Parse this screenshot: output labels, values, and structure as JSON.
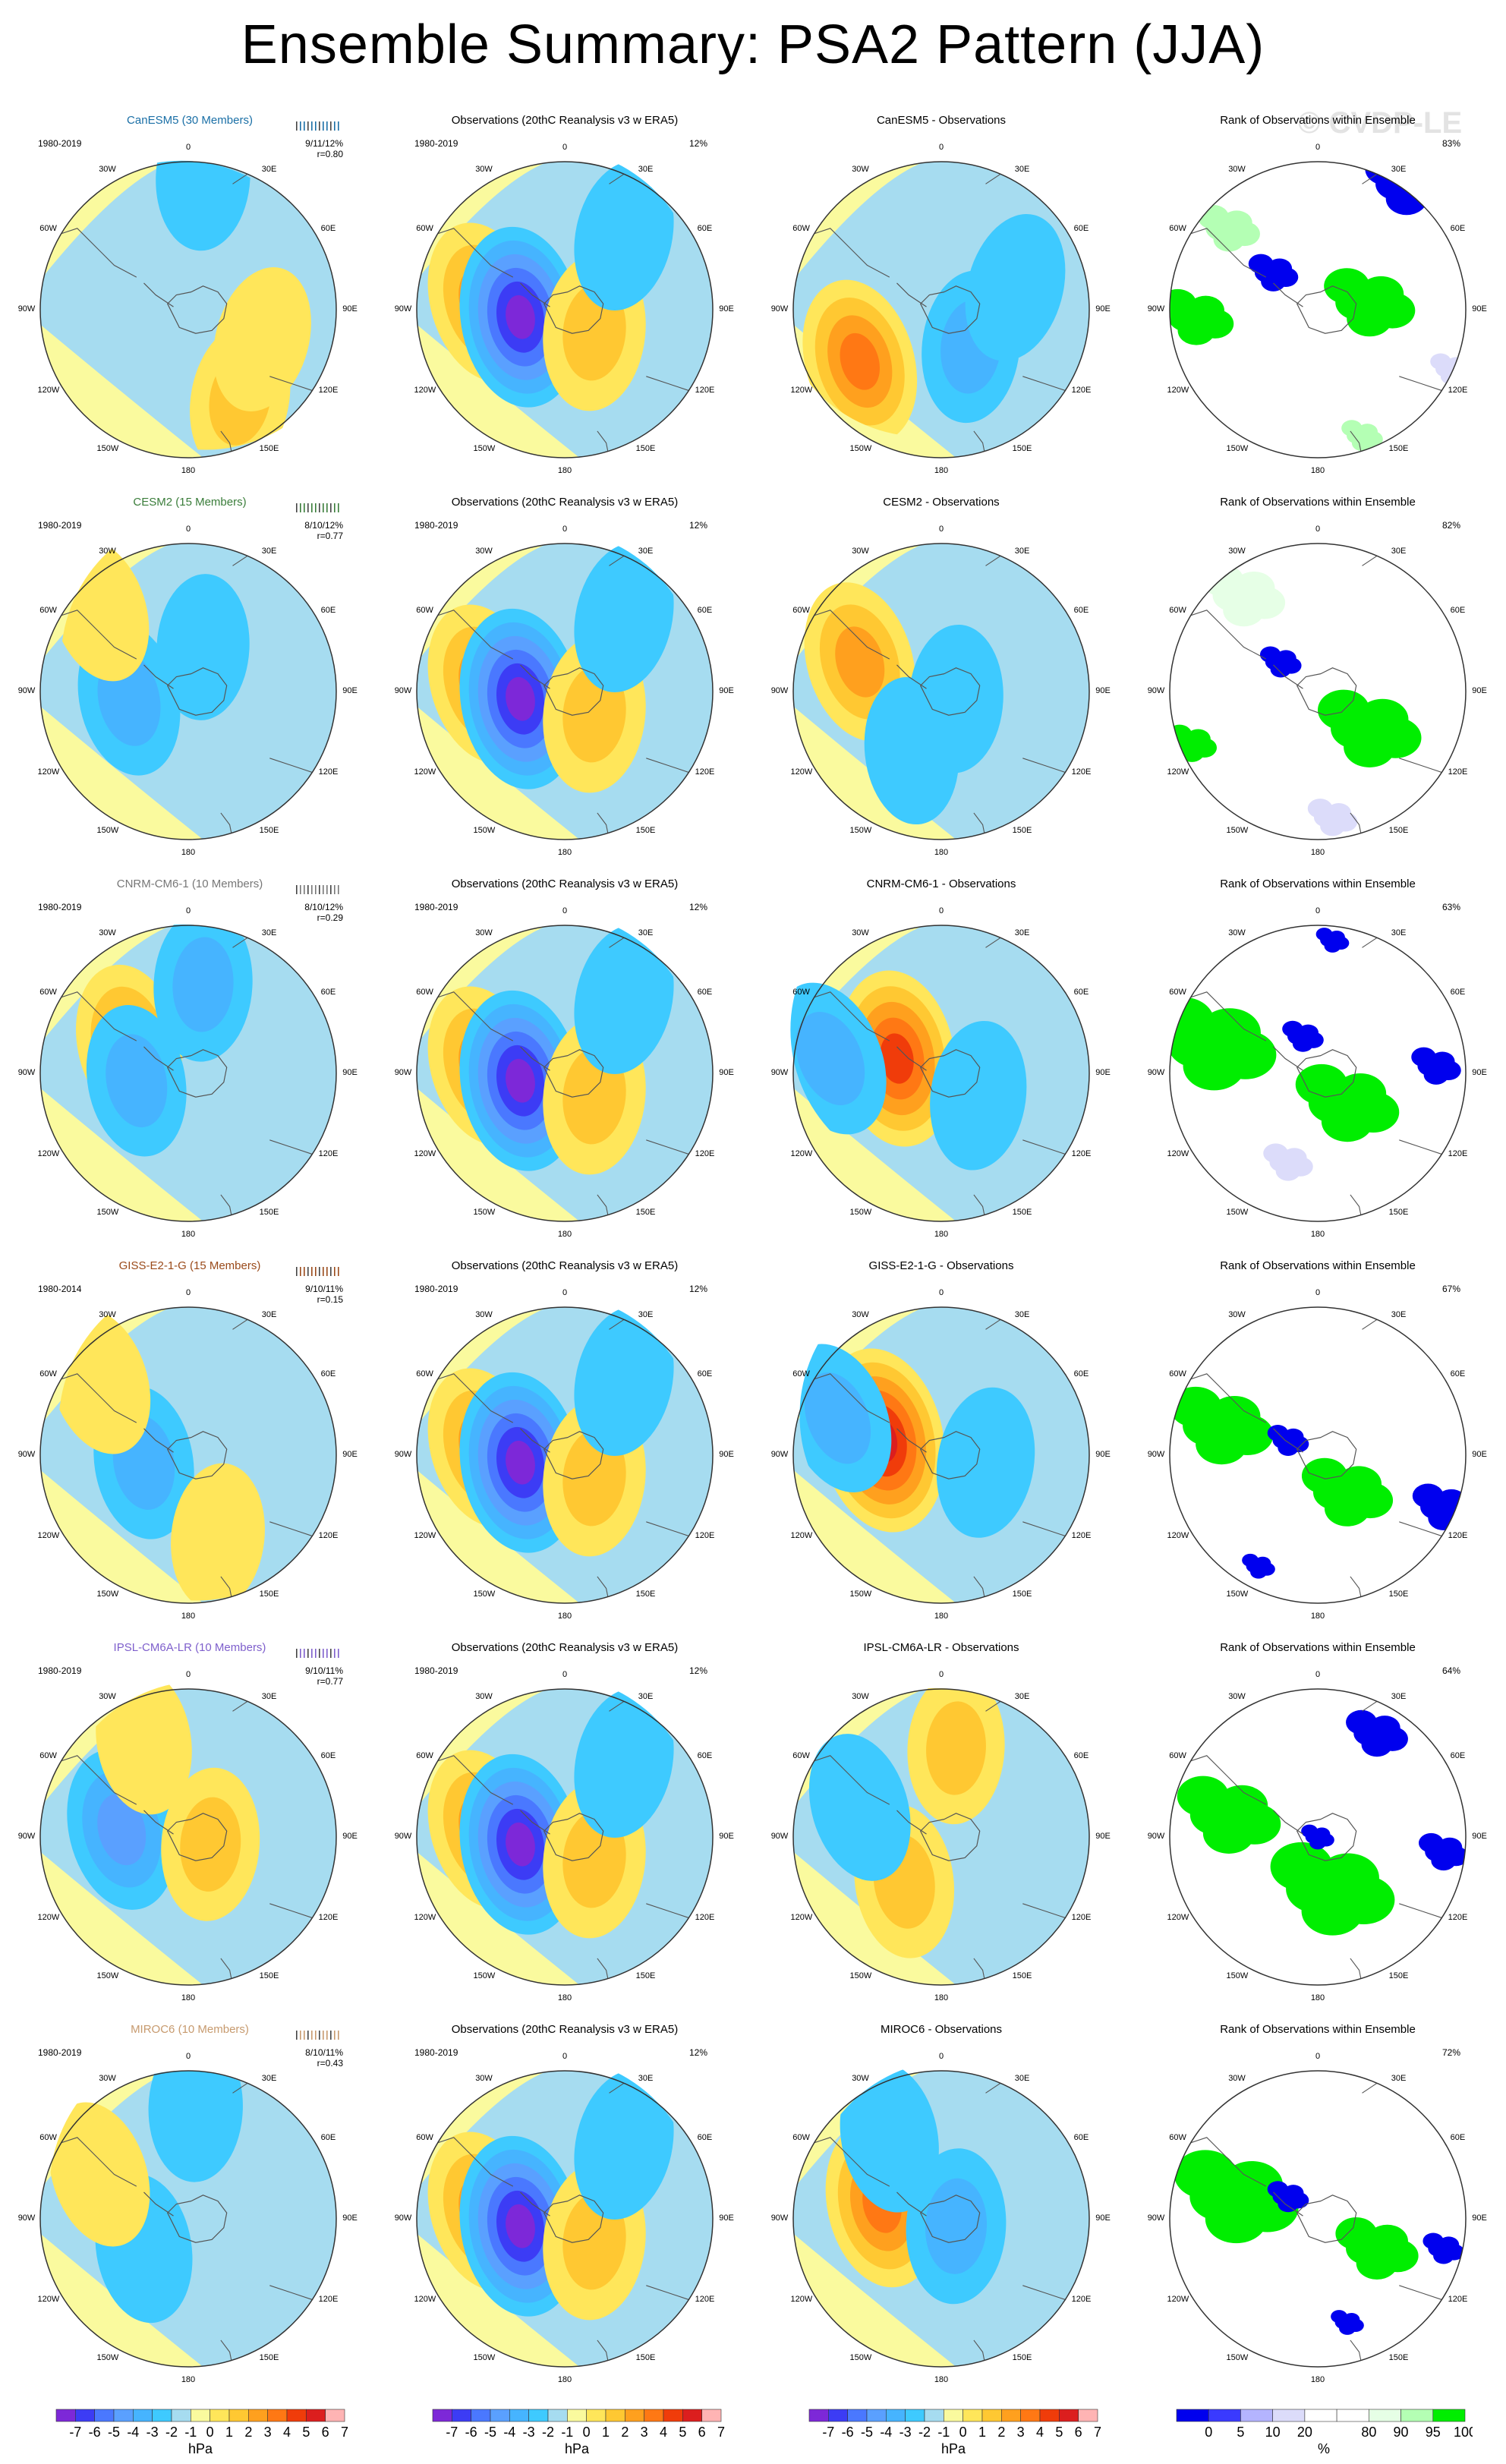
{
  "title": "Ensemble Summary: PSA2 Pattern (JJA)",
  "watermark": "© CVDP-LE",
  "column_titles": {
    "obs": "Observations (20thC Reanalysis v3 w ERA5)",
    "rank": "Rank of Observations within Ensemble",
    "diff_suffix": " - Observations"
  },
  "lon_labels": [
    "0",
    "30E",
    "60E",
    "90E",
    "120E",
    "150E",
    "180",
    "150W",
    "120W",
    "90W",
    "60W",
    "30W"
  ],
  "colors": {
    "anomaly_scale": [
      "#7d28d8",
      "#3c3cf5",
      "#4a78ff",
      "#5aa0ff",
      "#46b4ff",
      "#3ecaff",
      "#a6dcf0",
      "#fafa9e",
      "#ffe65a",
      "#ffc832",
      "#ffa01e",
      "#ff7814",
      "#f03c0a",
      "#dc1e1e",
      "#ffb4b4"
    ],
    "rank_scale": [
      "#0000ee",
      "#3a3aff",
      "#b4b4ff",
      "#dcdcfa",
      "#ffffff",
      "#ffffff",
      "#e6ffe6",
      "#b4ffb4",
      "#00ee00"
    ]
  },
  "colorbar_anomaly": {
    "ticks": [
      "-7",
      "-6",
      "-5",
      "-4",
      "-3",
      "-2",
      "-1",
      "0",
      "1",
      "2",
      "3",
      "4",
      "5",
      "6",
      "7"
    ],
    "unit": "hPa"
  },
  "colorbar_rank": {
    "ticks": [
      "0",
      "5",
      "10",
      "20",
      "80",
      "90",
      "95",
      "100"
    ],
    "unit": "%"
  },
  "rows": [
    {
      "model": "CanESM5",
      "model_title": "CanESM5 (30 Members)",
      "model_color": "#1a6fa6",
      "period": "1980-2019",
      "obs_period": "1980-2019",
      "stats": "9/11/12%",
      "r": "r=0.80",
      "obs_pct": "12%",
      "rank_pct": "83%",
      "members": [
        {
          "u": 0.35,
          "v": -0.6,
          "a": 1.3
        },
        {
          "u": 0.1,
          "v": 0.9,
          "a": -0.6
        },
        {
          "u": 0.5,
          "v": -0.2,
          "a": 0.4
        }
      ],
      "diff": [
        {
          "u": -0.55,
          "v": -0.35,
          "a": 3.2
        },
        {
          "u": 0.2,
          "v": -0.25,
          "a": -1.2
        },
        {
          "u": 0.5,
          "v": 0.15,
          "a": -0.8
        }
      ],
      "rank_regions": [
        {
          "u": -0.82,
          "v": -0.05,
          "r": 0.18,
          "c": 8
        },
        {
          "u": 0.35,
          "v": 0.05,
          "r": 0.22,
          "c": 8
        },
        {
          "u": 0.6,
          "v": 0.85,
          "r": 0.2,
          "c": 0
        },
        {
          "u": -0.3,
          "v": 0.25,
          "r": 0.12,
          "c": 0
        },
        {
          "u": -0.6,
          "v": 0.55,
          "r": 0.15,
          "c": 7
        },
        {
          "u": 0.9,
          "v": -0.4,
          "r": 0.1,
          "c": 3
        },
        {
          "u": 0.3,
          "v": -0.85,
          "r": 0.1,
          "c": 7
        }
      ]
    },
    {
      "model": "CESM2",
      "model_title": "CESM2 (15 Members)",
      "model_color": "#3a7d3a",
      "period": "1980-2019",
      "obs_period": "1980-2019",
      "stats": "8/10/12%",
      "r": "r=0.77",
      "obs_pct": "12%",
      "rank_pct": "82%",
      "members": [
        {
          "u": -0.4,
          "v": -0.05,
          "a": -1.5
        },
        {
          "u": 0.1,
          "v": 0.3,
          "a": -0.3
        },
        {
          "u": -0.6,
          "v": 0.55,
          "a": 0.3
        }
      ],
      "diff": [
        {
          "u": -0.55,
          "v": 0.2,
          "a": 2.6
        },
        {
          "u": 0.1,
          "v": -0.05,
          "a": -0.6
        },
        {
          "u": -0.2,
          "v": -0.4,
          "a": -0.5
        }
      ],
      "rank_regions": [
        {
          "u": 0.35,
          "v": -0.25,
          "r": 0.25,
          "c": 8
        },
        {
          "u": -0.85,
          "v": -0.35,
          "r": 0.12,
          "c": 8
        },
        {
          "u": -0.25,
          "v": 0.2,
          "r": 0.1,
          "c": 0
        },
        {
          "u": 0.1,
          "v": -0.85,
          "r": 0.12,
          "c": 3
        },
        {
          "u": -0.5,
          "v": 0.65,
          "r": 0.2,
          "c": 6
        }
      ]
    },
    {
      "model": "CNRM-CM6-1",
      "model_title": "CNRM-CM6-1 (10 Members)",
      "model_color": "#777777",
      "period": "1980-2019",
      "obs_period": "1980-2019",
      "stats": "8/10/12%",
      "r": "r=0.29",
      "obs_pct": "12%",
      "rank_pct": "63%",
      "members": [
        {
          "u": -0.4,
          "v": 0.2,
          "a": 2.2
        },
        {
          "u": 0.1,
          "v": 0.6,
          "a": -1.4
        },
        {
          "u": -0.35,
          "v": -0.05,
          "a": -1.2
        }
      ],
      "diff": [
        {
          "u": -0.3,
          "v": 0.1,
          "a": 4.6
        },
        {
          "u": -0.75,
          "v": 0.1,
          "a": -2.0
        },
        {
          "u": 0.25,
          "v": -0.15,
          "a": -0.8
        }
      ],
      "rank_regions": [
        {
          "u": -0.7,
          "v": 0.2,
          "r": 0.3,
          "c": 8
        },
        {
          "u": 0.2,
          "v": -0.2,
          "r": 0.25,
          "c": 8
        },
        {
          "u": 0.8,
          "v": 0.05,
          "r": 0.12,
          "c": 0
        },
        {
          "u": -0.1,
          "v": 0.25,
          "r": 0.1,
          "c": 0
        },
        {
          "u": 0.1,
          "v": 0.9,
          "r": 0.08,
          "c": 0
        },
        {
          "u": -0.2,
          "v": -0.6,
          "r": 0.12,
          "c": 3
        }
      ]
    },
    {
      "model": "GISS-E2-1-G",
      "model_title": "GISS-E2-1-G (15 Members)",
      "model_color": "#9a4a1a",
      "period": "1980-2014",
      "obs_period": "1980-2019",
      "stats": "9/10/11%",
      "r": "r=0.15",
      "obs_pct": "12%",
      "rank_pct": "67%",
      "members": [
        {
          "u": -0.3,
          "v": -0.05,
          "a": -1.4
        },
        {
          "u": -0.6,
          "v": 0.5,
          "a": 0.8
        },
        {
          "u": 0.2,
          "v": -0.55,
          "a": 0.4
        }
      ],
      "diff": [
        {
          "u": -0.4,
          "v": 0.1,
          "a": 5.8
        },
        {
          "u": -0.7,
          "v": 0.25,
          "a": -1.4
        },
        {
          "u": 0.3,
          "v": -0.05,
          "a": -1.0
        }
      ],
      "rank_regions": [
        {
          "u": -0.65,
          "v": 0.2,
          "r": 0.25,
          "c": 8
        },
        {
          "u": 0.2,
          "v": -0.25,
          "r": 0.22,
          "c": 8
        },
        {
          "u": 0.85,
          "v": -0.35,
          "r": 0.15,
          "c": 0
        },
        {
          "u": -0.2,
          "v": 0.1,
          "r": 0.1,
          "c": 0
        },
        {
          "u": -0.4,
          "v": -0.75,
          "r": 0.08,
          "c": 0
        }
      ]
    },
    {
      "model": "IPSL-CM6A-LR",
      "model_title": "IPSL-CM6A-LR (10 Members)",
      "model_color": "#7e5fcc",
      "period": "1980-2019",
      "obs_period": "1980-2019",
      "stats": "9/10/11%",
      "r": "r=0.77",
      "obs_pct": "12%",
      "rank_pct": "64%",
      "members": [
        {
          "u": -0.45,
          "v": 0.05,
          "a": -2.6
        },
        {
          "u": 0.15,
          "v": -0.05,
          "a": 1.3
        },
        {
          "u": -0.3,
          "v": 0.65,
          "a": 0.6
        }
      ],
      "diff": [
        {
          "u": -0.25,
          "v": -0.3,
          "a": 1.4
        },
        {
          "u": -0.55,
          "v": 0.2,
          "a": -0.9
        },
        {
          "u": 0.1,
          "v": 0.6,
          "a": 1.1
        }
      ],
      "rank_regions": [
        {
          "u": 0.1,
          "v": -0.35,
          "r": 0.3,
          "c": 8
        },
        {
          "u": -0.6,
          "v": 0.15,
          "r": 0.25,
          "c": 8
        },
        {
          "u": 0.4,
          "v": 0.7,
          "r": 0.15,
          "c": 0
        },
        {
          "u": 0.85,
          "v": -0.1,
          "r": 0.12,
          "c": 0
        },
        {
          "u": 0.0,
          "v": 0.0,
          "r": 0.08,
          "c": 0
        }
      ]
    },
    {
      "model": "MIROC6",
      "model_title": "MIROC6 (10 Members)",
      "model_color": "#c79a6e",
      "period": "1980-2019",
      "obs_period": "1980-2019",
      "stats": "8/10/11%",
      "r": "r=0.43",
      "obs_pct": "12%",
      "rank_pct": "72%",
      "members": [
        {
          "u": -0.3,
          "v": -0.2,
          "a": -0.8
        },
        {
          "u": 0.05,
          "v": 0.75,
          "a": -0.6
        },
        {
          "u": -0.6,
          "v": 0.3,
          "a": 0.6
        }
      ],
      "diff": [
        {
          "u": -0.4,
          "v": 0.1,
          "a": 3.4
        },
        {
          "u": 0.1,
          "v": -0.05,
          "a": -1.6
        },
        {
          "u": -0.35,
          "v": 0.55,
          "a": -1.0
        }
      ],
      "rank_regions": [
        {
          "u": -0.55,
          "v": 0.15,
          "r": 0.3,
          "c": 8
        },
        {
          "u": 0.4,
          "v": -0.2,
          "r": 0.2,
          "c": 8
        },
        {
          "u": 0.85,
          "v": -0.2,
          "r": 0.1,
          "c": 0
        },
        {
          "u": -0.2,
          "v": 0.15,
          "r": 0.1,
          "c": 0
        },
        {
          "u": 0.2,
          "v": -0.7,
          "r": 0.08,
          "c": 0
        }
      ]
    }
  ],
  "obs_field": [
    {
      "u": -0.55,
      "v": 0.05,
      "a": 2.6
    },
    {
      "u": -0.3,
      "v": -0.05,
      "a": -5.2
    },
    {
      "u": 0.2,
      "v": -0.15,
      "a": 2.0
    },
    {
      "u": 0.4,
      "v": 0.5,
      "a": -1.0
    }
  ]
}
